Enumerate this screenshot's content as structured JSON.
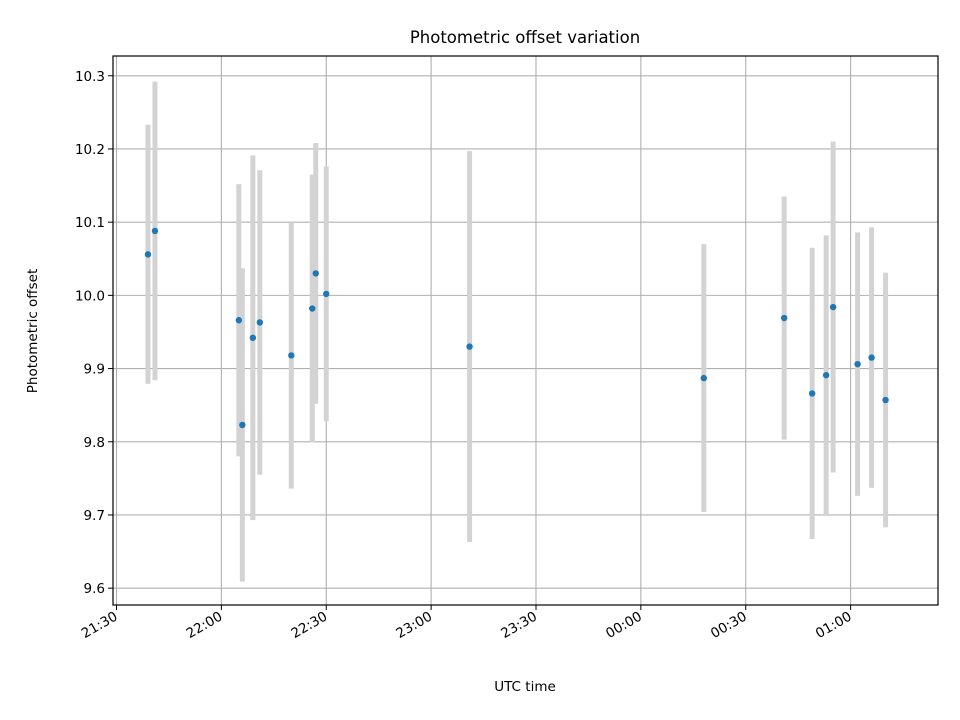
{
  "chart_data": {
    "type": "scatter",
    "title": "Photometric offset variation",
    "xlabel": "UTC time",
    "ylabel": "Photometric offset",
    "grid": true,
    "x_tick_labels": [
      "21:30",
      "22:00",
      "22:30",
      "23:00",
      "23:30",
      "00:00",
      "00:30",
      "01:00"
    ],
    "y_tick_labels": [
      "9.6",
      "9.7",
      "9.8",
      "9.9",
      "10.0",
      "10.1",
      "10.2",
      "10.3"
    ],
    "y_ticks": [
      9.6,
      9.7,
      9.8,
      9.9,
      10.0,
      10.1,
      10.2,
      10.3
    ],
    "ylim": [
      9.577,
      10.327
    ],
    "xlim": [
      "21:29",
      "01:25"
    ],
    "colors": {
      "point": "#1f77b4",
      "errorbar": "#d3d3d3",
      "grid": "#b0b0b0"
    },
    "series": [
      {
        "points": [
          {
            "x": "21:39",
            "y": 10.056,
            "yerr": 0.177
          },
          {
            "x": "21:41",
            "y": 10.088,
            "yerr": 0.204
          },
          {
            "x": "22:05",
            "y": 9.966,
            "yerr": 0.186
          },
          {
            "x": "22:06",
            "y": 9.823,
            "yerr": 0.214
          },
          {
            "x": "22:09",
            "y": 9.942,
            "yerr": 0.249
          },
          {
            "x": "22:11",
            "y": 9.963,
            "yerr": 0.208
          },
          {
            "x": "22:20",
            "y": 9.918,
            "yerr": 0.182
          },
          {
            "x": "22:26",
            "y": 9.982,
            "yerr": 0.183
          },
          {
            "x": "22:27",
            "y": 10.03,
            "yerr": 0.178
          },
          {
            "x": "22:30",
            "y": 10.002,
            "yerr": 0.174
          },
          {
            "x": "23:11",
            "y": 9.93,
            "yerr": 0.267
          },
          {
            "x": "00:18",
            "y": 9.887,
            "yerr": 0.183
          },
          {
            "x": "00:41",
            "y": 9.969,
            "yerr": 0.166
          },
          {
            "x": "00:49",
            "y": 9.866,
            "yerr": 0.199
          },
          {
            "x": "00:53",
            "y": 9.891,
            "yerr": 0.191
          },
          {
            "x": "00:55",
            "y": 9.984,
            "yerr": 0.226
          },
          {
            "x": "01:02",
            "y": 9.906,
            "yerr": 0.18
          },
          {
            "x": "01:06",
            "y": 9.915,
            "yerr": 0.178
          },
          {
            "x": "01:10",
            "y": 9.857,
            "yerr": 0.174
          }
        ]
      }
    ]
  }
}
